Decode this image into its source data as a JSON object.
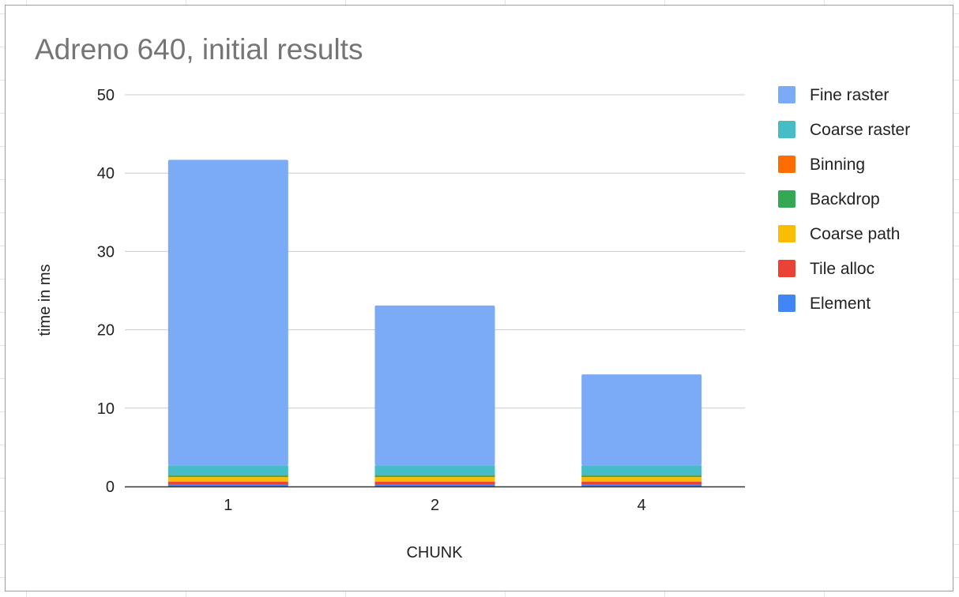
{
  "chart_data": {
    "type": "bar",
    "stacked": true,
    "title": "Adreno 640, initial results",
    "xlabel": "CHUNK",
    "ylabel": "time in ms",
    "categories": [
      "1",
      "2",
      "4"
    ],
    "ylim": [
      0,
      50
    ],
    "yticks": [
      0,
      10,
      20,
      30,
      40,
      50
    ],
    "grid": true,
    "legend_position": "right",
    "series": [
      {
        "name": "Element",
        "color": "#4285f4",
        "values": [
          0.3,
          0.3,
          0.3
        ]
      },
      {
        "name": "Tile alloc",
        "color": "#ea4335",
        "values": [
          0.3,
          0.3,
          0.3
        ]
      },
      {
        "name": "Coarse path",
        "color": "#fbbc04",
        "values": [
          0.6,
          0.6,
          0.6
        ]
      },
      {
        "name": "Backdrop",
        "color": "#34a853",
        "values": [
          0.2,
          0.2,
          0.2
        ]
      },
      {
        "name": "Binning",
        "color": "#ff6d01",
        "values": [
          0.1,
          0.1,
          0.1
        ]
      },
      {
        "name": "Coarse raster",
        "color": "#46bdc6",
        "values": [
          1.2,
          1.2,
          1.2
        ]
      },
      {
        "name": "Fine raster",
        "color": "#7baaf7",
        "values": [
          39.0,
          20.4,
          11.6
        ]
      }
    ]
  }
}
